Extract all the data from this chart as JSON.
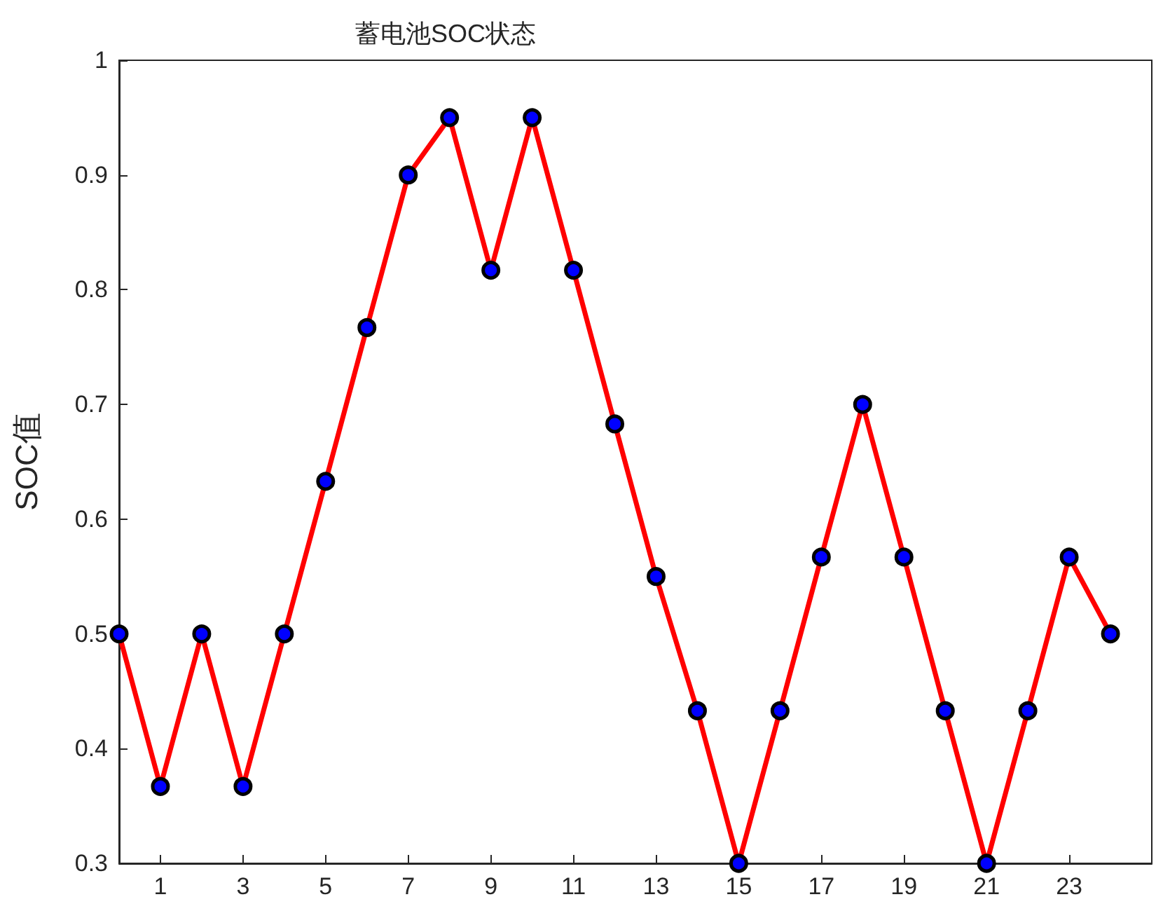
{
  "chart_data": {
    "type": "line",
    "title": "蓄电池SOC状态",
    "ylabel": "SOC值",
    "x": [
      0,
      1,
      2,
      3,
      4,
      5,
      6,
      7,
      8,
      9,
      10,
      11,
      12,
      13,
      14,
      15,
      16,
      17,
      18,
      19,
      20,
      21,
      22,
      23,
      24
    ],
    "series": [
      {
        "color": "#ff0000",
        "values": [
          0.5,
          0.367,
          0.5,
          0.367,
          0.5,
          0.633,
          0.767,
          0.9,
          0.95,
          0.817,
          0.95,
          0.817,
          0.683,
          0.55,
          0.433,
          0.3,
          0.433,
          0.567,
          0.7,
          0.567,
          0.433,
          0.3,
          0.433,
          0.567,
          0.5
        ]
      }
    ],
    "xlim": [
      0,
      25
    ],
    "xticks": [
      1,
      3,
      5,
      7,
      9,
      11,
      13,
      15,
      17,
      19,
      21,
      23
    ],
    "ylim": [
      0.3,
      1
    ],
    "yticks": [
      0.3,
      0.4,
      0.5,
      0.6,
      0.7,
      0.8,
      0.9,
      1
    ],
    "marker": "circle",
    "line_style": "solid"
  }
}
